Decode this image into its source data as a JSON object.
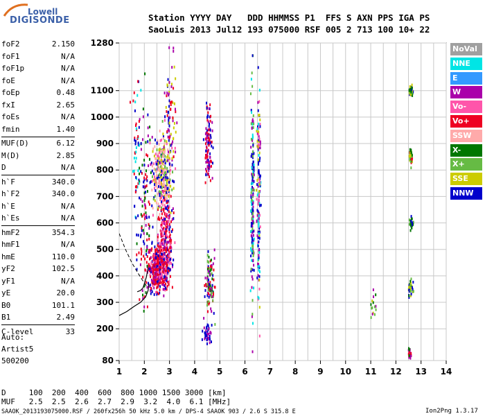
{
  "logo": {
    "line1": "Lowell",
    "line2": "DIGISONDE"
  },
  "header": {
    "labels": "Station YYYY DAY   DDD HHMMSS P1  FFS S AXN PPS IGA PS",
    "values": "SaoLuis 2013 Jul12 193 075000 RSF 005 2 713 100 10+ 22"
  },
  "params": [
    {
      "k": "foF2",
      "v": "2.150"
    },
    {
      "k": "foF1",
      "v": "N/A"
    },
    {
      "k": "foF1p",
      "v": "N/A"
    },
    {
      "k": "foE",
      "v": "N/A"
    },
    {
      "k": "foEp",
      "v": "0.48"
    },
    {
      "k": "fxI",
      "v": "2.65"
    },
    {
      "k": "foEs",
      "v": "N/A"
    },
    {
      "k": "fmin",
      "v": "1.40"
    },
    {
      "k": "MUF(D)",
      "v": "6.12"
    },
    {
      "k": "M(D)",
      "v": "2.85"
    },
    {
      "k": "D",
      "v": "N/A"
    },
    {
      "k": "h`F",
      "v": "340.0"
    },
    {
      "k": "h`F2",
      "v": "340.0"
    },
    {
      "k": "h`E",
      "v": "N/A"
    },
    {
      "k": "h`Es",
      "v": "N/A"
    },
    {
      "k": "hmF2",
      "v": "354.3"
    },
    {
      "k": "hmF1",
      "v": "N/A"
    },
    {
      "k": "hmE",
      "v": "110.0"
    },
    {
      "k": "yF2",
      "v": "102.5"
    },
    {
      "k": "yF1",
      "v": "N/A"
    },
    {
      "k": "yE",
      "v": "20.0"
    },
    {
      "k": "B0",
      "v": "101.1"
    },
    {
      "k": "B1",
      "v": "2.49"
    },
    {
      "k": "C-level",
      "v": "33"
    }
  ],
  "notes": {
    "auto": "Auto:",
    "artist": "Artist5",
    "code": "500200"
  },
  "legend": [
    {
      "name": "NoVal",
      "color": "#a0a0a0"
    },
    {
      "name": "NNE",
      "color": "#00e5e5"
    },
    {
      "name": "E",
      "color": "#3399ff"
    },
    {
      "name": "W",
      "color": "#aa00aa"
    },
    {
      "name": "Vo-",
      "color": "#ff55aa"
    },
    {
      "name": "Vo+",
      "color": "#ee0022"
    },
    {
      "name": "SSW",
      "color": "#ffaaaa"
    },
    {
      "name": "X-",
      "color": "#007700"
    },
    {
      "name": "X+",
      "color": "#66bb44"
    },
    {
      "name": "SSE",
      "color": "#cccc00"
    },
    {
      "name": "NNW",
      "color": "#0000cc"
    }
  ],
  "footer": {
    "d_row": "D     100  200  400  600  800 1000 1500 3000 [km]",
    "muf_row": "MUF   2.5  2.5  2.6  2.7  2.9  3.2  4.0  6.1 [MHz]",
    "file_info": "SAAOK_2013193075000.RSF / 260fx256h 50 kHz 5.0 km / DPS-4 SAAOK 903 / 2.6 S 315.8 E",
    "version": "Ion2Png 1.3.17"
  },
  "chart_data": {
    "type": "scatter",
    "title": "",
    "xlabel": "",
    "ylabel": "",
    "xlim": [
      1,
      14
    ],
    "ylim": [
      80,
      1280
    ],
    "x_ticks": [
      1,
      2,
      3,
      4,
      5,
      6,
      7,
      8,
      9,
      10,
      11,
      12,
      13,
      14
    ],
    "y_ticks": [
      80,
      200,
      300,
      400,
      500,
      600,
      700,
      800,
      900,
      1000,
      1100,
      1280
    ],
    "grid": true,
    "legend_position": "right",
    "clusters": [
      {
        "cx": 2.55,
        "cy": 420,
        "sx": 0.35,
        "sy": 70,
        "n": 380,
        "colors": [
          "#ee0022",
          "#ee0022",
          "#ee0022",
          "#ff55aa",
          "#0000cc",
          "#aa00aa"
        ]
      },
      {
        "cx": 2.85,
        "cy": 560,
        "sx": 0.25,
        "sy": 140,
        "n": 260,
        "colors": [
          "#ee0022",
          "#ff55aa",
          "#aa00aa",
          "#0000cc",
          "#ee0022"
        ]
      },
      {
        "cx": 2.7,
        "cy": 790,
        "sx": 0.32,
        "sy": 110,
        "n": 300,
        "colors": [
          "#ffaaaa",
          "#ffaaaa",
          "#cccc00",
          "#ff55aa",
          "#0000cc",
          "#66bb44"
        ]
      },
      {
        "cx": 2.05,
        "cy": 650,
        "sx": 0.25,
        "sy": 300,
        "n": 120,
        "colors": [
          "#0000cc",
          "#aa00aa",
          "#007700",
          "#ee0022"
        ]
      },
      {
        "cx": 3.05,
        "cy": 980,
        "sx": 0.2,
        "sy": 250,
        "n": 90,
        "colors": [
          "#0000cc",
          "#aa00aa",
          "#ee0022",
          "#cccc00"
        ]
      },
      {
        "cx": 4.55,
        "cy": 900,
        "sx": 0.12,
        "sy": 120,
        "n": 110,
        "colors": [
          "#0000cc",
          "#aa00aa",
          "#ee0022"
        ]
      },
      {
        "cx": 4.6,
        "cy": 380,
        "sx": 0.15,
        "sy": 90,
        "n": 110,
        "colors": [
          "#0000cc",
          "#aa00aa",
          "#66bb44",
          "#007700",
          "#ee0022"
        ]
      },
      {
        "cx": 4.5,
        "cy": 180,
        "sx": 0.15,
        "sy": 40,
        "n": 40,
        "colors": [
          "#0000cc",
          "#aa00aa"
        ]
      },
      {
        "cx": 6.3,
        "cy": 680,
        "sx": 0.05,
        "sy": 340,
        "n": 180,
        "colors": [
          "#0000cc",
          "#00e5e5",
          "#aa00aa",
          "#66bb44"
        ]
      },
      {
        "cx": 6.55,
        "cy": 700,
        "sx": 0.06,
        "sy": 320,
        "n": 160,
        "colors": [
          "#0000cc",
          "#00e5e5",
          "#aa00aa",
          "#cccc00",
          "#ff55aa"
        ]
      },
      {
        "cx": 12.6,
        "cy": 1100,
        "sx": 0.07,
        "sy": 20,
        "n": 35,
        "colors": [
          "#007700",
          "#66bb44",
          "#0000cc",
          "#cccc00"
        ]
      },
      {
        "cx": 12.6,
        "cy": 850,
        "sx": 0.07,
        "sy": 25,
        "n": 40,
        "colors": [
          "#007700",
          "#cccc00",
          "#66bb44",
          "#ee0022"
        ]
      },
      {
        "cx": 12.6,
        "cy": 600,
        "sx": 0.06,
        "sy": 20,
        "n": 35,
        "colors": [
          "#007700",
          "#66bb44",
          "#0000cc"
        ]
      },
      {
        "cx": 12.6,
        "cy": 355,
        "sx": 0.07,
        "sy": 25,
        "n": 40,
        "colors": [
          "#007700",
          "#66bb44",
          "#0000cc",
          "#cccc00"
        ]
      },
      {
        "cx": 12.55,
        "cy": 110,
        "sx": 0.06,
        "sy": 15,
        "n": 25,
        "colors": [
          "#ee0022",
          "#aa00aa",
          "#007700"
        ]
      },
      {
        "cx": 11.1,
        "cy": 300,
        "sx": 0.1,
        "sy": 60,
        "n": 15,
        "colors": [
          "#cccc00",
          "#66bb44",
          "#007700",
          "#aa00aa"
        ]
      },
      {
        "cx": 1.7,
        "cy": 800,
        "sx": 0.15,
        "sy": 350,
        "n": 60,
        "colors": [
          "#0000cc",
          "#ee0022",
          "#00e5e5"
        ]
      }
    ],
    "ordinary_trace": {
      "x": [
        1.72,
        1.85,
        1.95,
        2.0,
        2.08,
        2.15
      ],
      "y": [
        340,
        345,
        355,
        370,
        395,
        430
      ]
    },
    "model_curve": {
      "x": [
        1.0,
        1.3,
        1.6,
        1.85,
        2.05,
        2.15,
        2.18
      ],
      "y": [
        250,
        265,
        285,
        300,
        320,
        345,
        370
      ]
    },
    "dashed_curve": {
      "x": [
        1.0,
        1.25,
        1.5,
        1.75,
        1.95,
        2.1
      ],
      "y": [
        560,
        500,
        450,
        410,
        380,
        360
      ]
    }
  }
}
